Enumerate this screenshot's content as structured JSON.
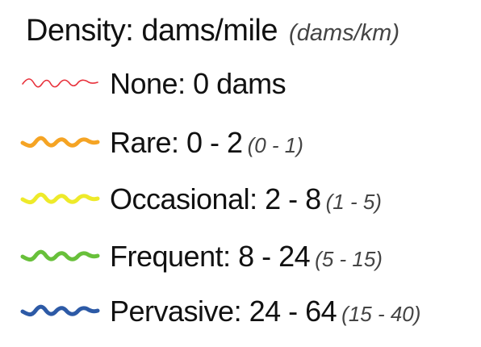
{
  "legend": {
    "title": "Density: dams/mile",
    "title_metric": "(dams/km)",
    "items": [
      {
        "label": "None: 0 dams",
        "metric": "",
        "color": "#e8303a",
        "stroke": "thin"
      },
      {
        "label": "Rare: 0 - 2",
        "metric": "(0 - 1)",
        "color": "#f5a424",
        "stroke": "thick"
      },
      {
        "label": "Occasional: 2 - 8",
        "metric": "(1 - 5)",
        "color": "#eeea2a",
        "stroke": "thick"
      },
      {
        "label": "Frequent: 8 - 24",
        "metric": "(5 - 15)",
        "color": "#68c03a",
        "stroke": "thick"
      },
      {
        "label": "Pervasive: 24 - 64",
        "metric": "(15 - 40)",
        "color": "#2d5aa6",
        "stroke": "thick"
      }
    ]
  }
}
